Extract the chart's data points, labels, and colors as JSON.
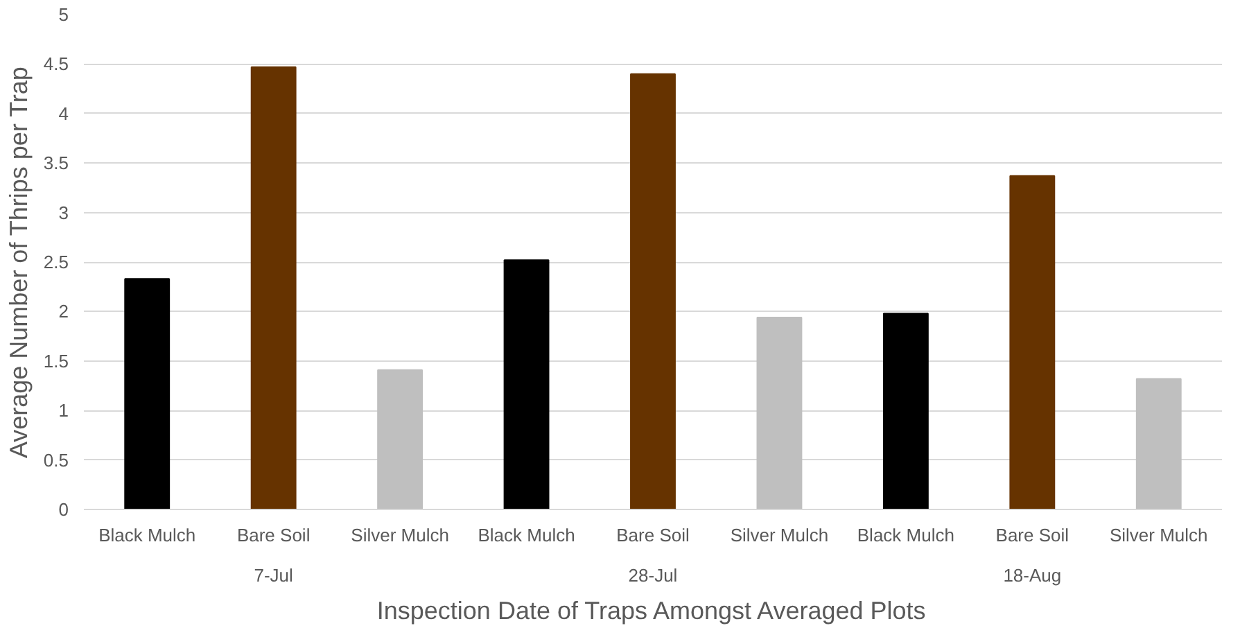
{
  "chart_data": {
    "type": "bar",
    "xlabel": "Inspection Date of Traps Amongst Averaged Plots",
    "ylabel": "Average Number of Thrips per Trap",
    "categories": [
      "Black Mulch",
      "Bare Soil",
      "Silver Mulch",
      "Black Mulch",
      "Bare Soil",
      "Silver Mulch",
      "Black Mulch",
      "Bare Soil",
      "Silver Mulch"
    ],
    "values": [
      2.33,
      4.47,
      1.41,
      2.52,
      4.4,
      1.94,
      1.98,
      3.37,
      1.32
    ],
    "colors": [
      "#000000",
      "#663300",
      "#bfbfbf",
      "#000000",
      "#663300",
      "#bfbfbf",
      "#000000",
      "#663300",
      "#bfbfbf"
    ],
    "annotations": [
      "7-Jul",
      "28-Jul",
      "18-Aug"
    ],
    "ylim": [
      0,
      5
    ],
    "yticks": [
      0,
      0.5,
      1,
      1.5,
      2,
      2.5,
      3,
      3.5,
      4,
      4.5,
      5
    ],
    "grid": "y"
  }
}
